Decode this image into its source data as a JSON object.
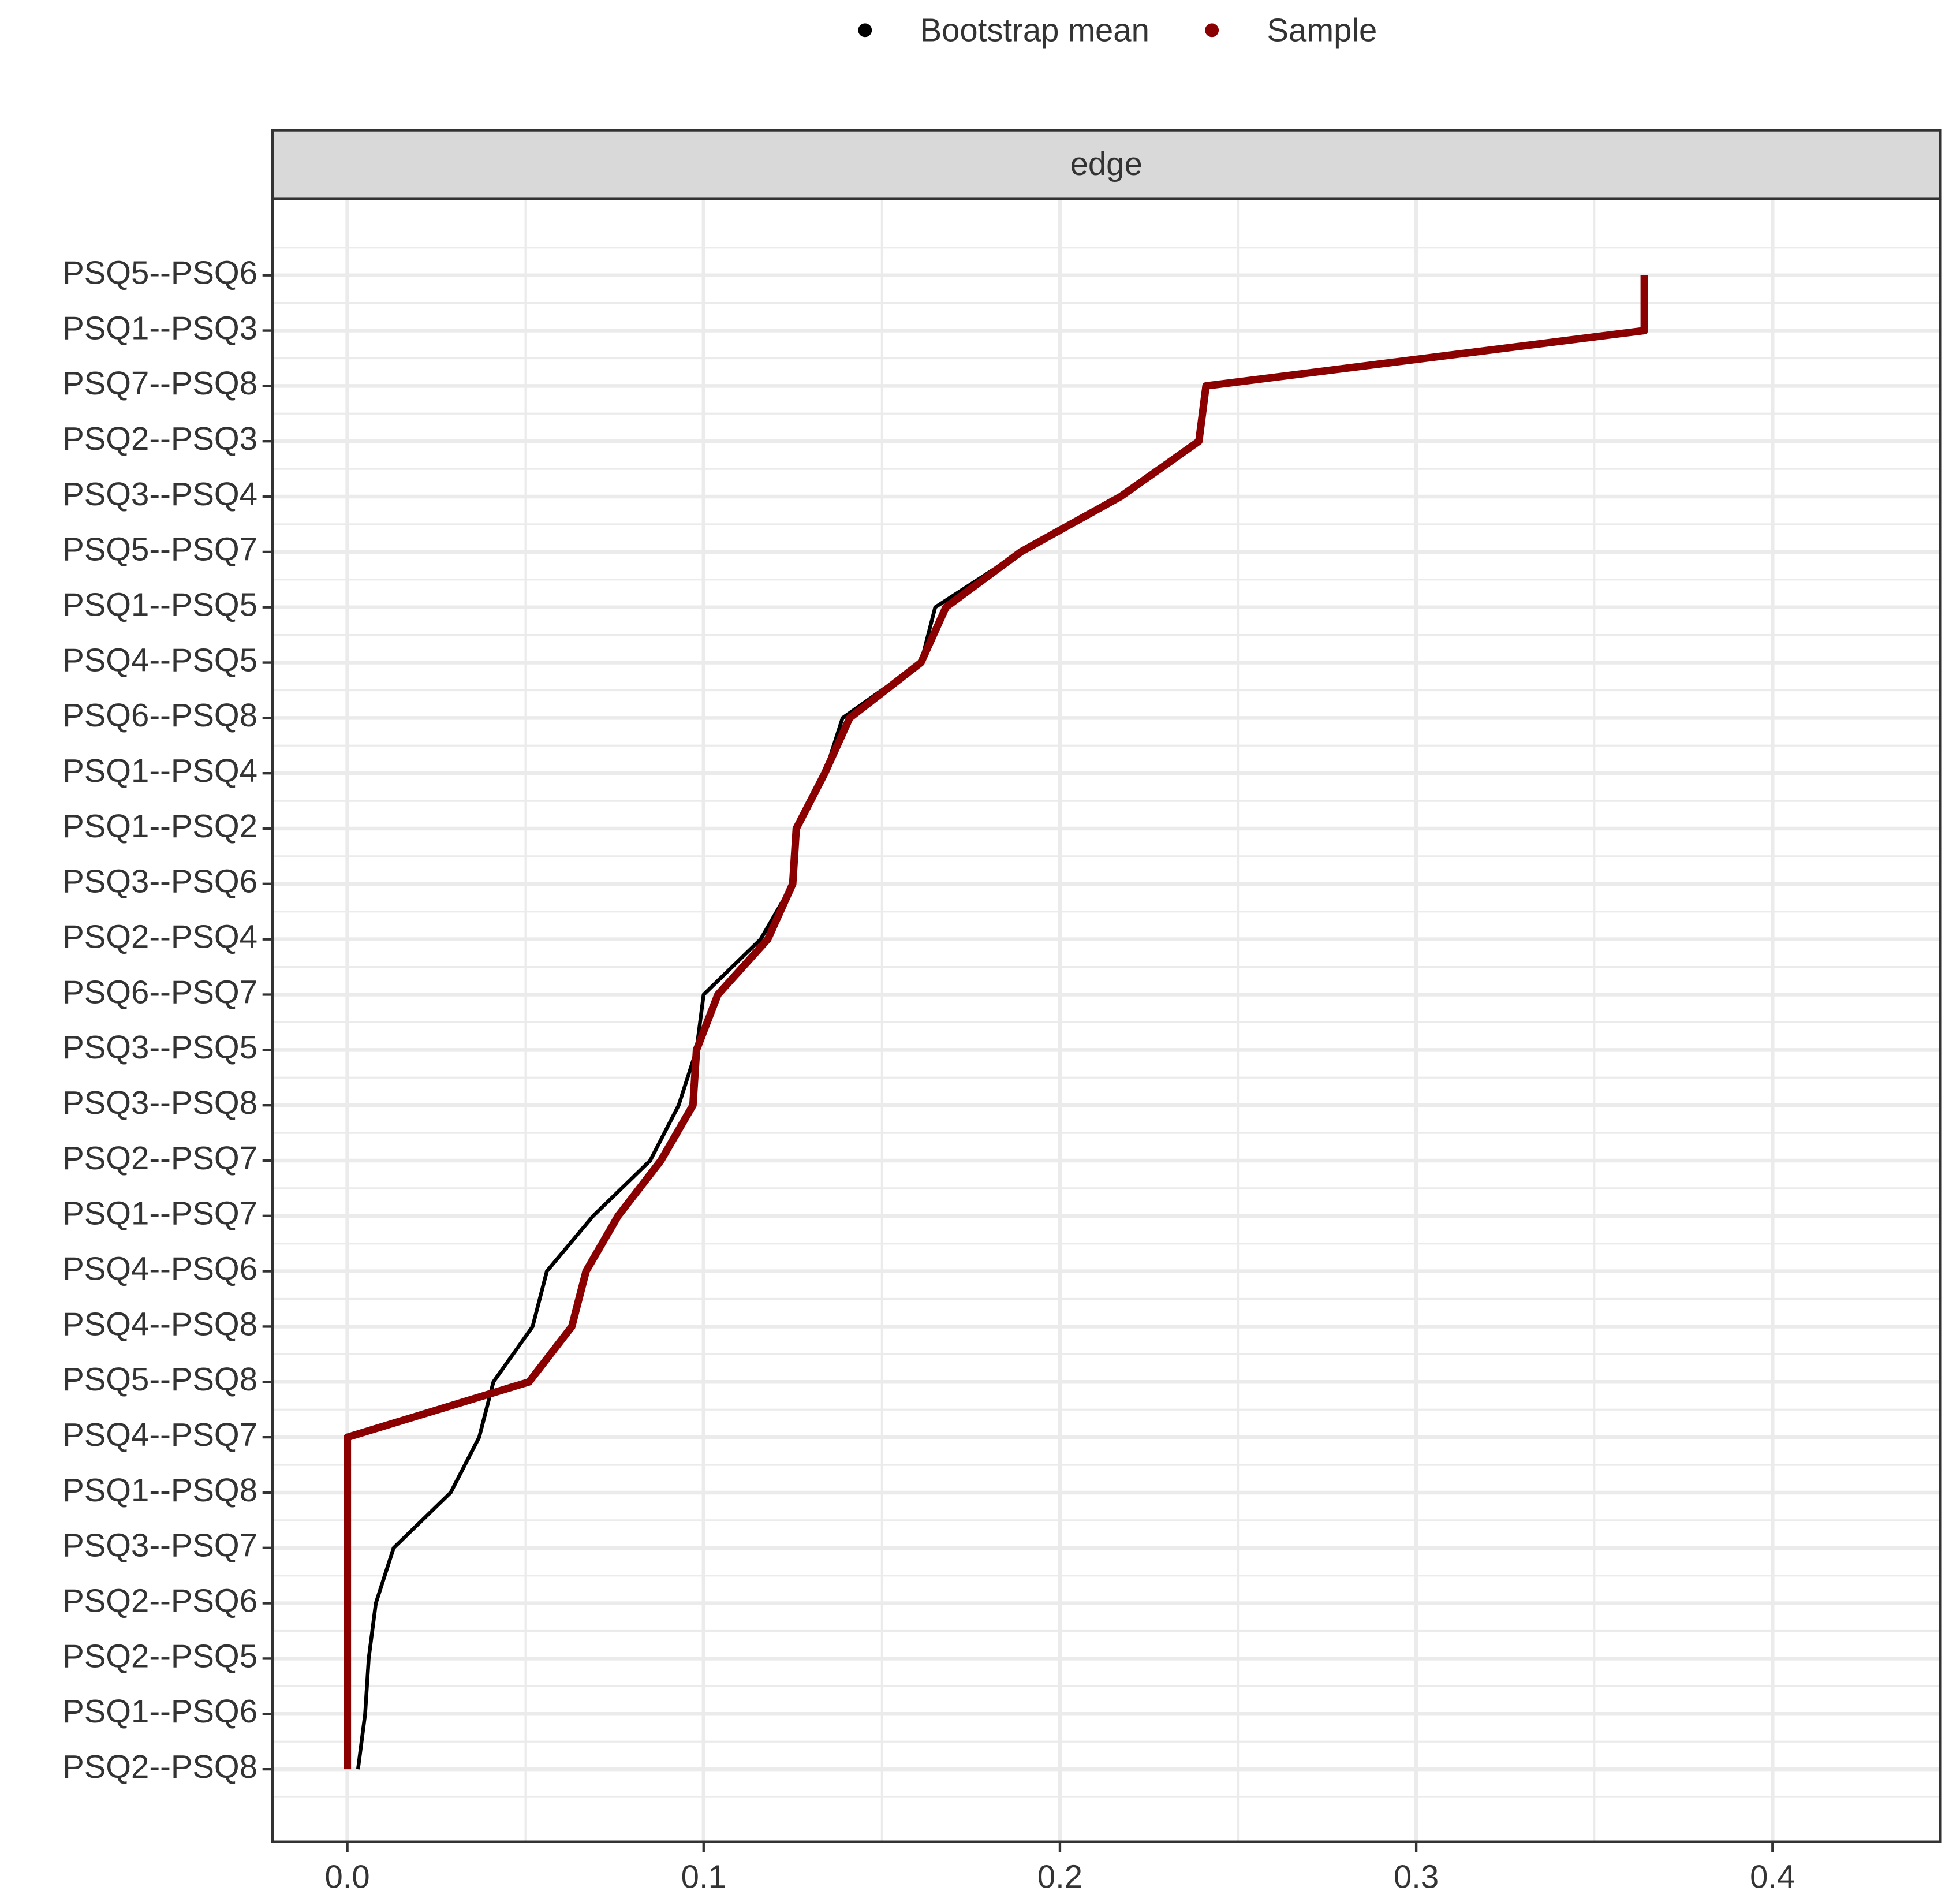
{
  "chart_data": {
    "type": "line",
    "orientation": "horizontal",
    "facet_label": "edge",
    "categories": [
      "PSQ5--PSQ6",
      "PSQ1--PSQ3",
      "PSQ7--PSQ8",
      "PSQ2--PSQ3",
      "PSQ3--PSQ4",
      "PSQ5--PSQ7",
      "PSQ1--PSQ5",
      "PSQ4--PSQ5",
      "PSQ6--PSQ8",
      "PSQ1--PSQ4",
      "PSQ1--PSQ2",
      "PSQ3--PSQ6",
      "PSQ2--PSQ4",
      "PSQ6--PSQ7",
      "PSQ3--PSQ5",
      "PSQ3--PSQ8",
      "PSQ2--PSQ7",
      "PSQ1--PSQ7",
      "PSQ4--PSQ6",
      "PSQ4--PSQ8",
      "PSQ5--PSQ8",
      "PSQ4--PSQ7",
      "PSQ1--PSQ8",
      "PSQ3--PSQ7",
      "PSQ2--PSQ6",
      "PSQ2--PSQ5",
      "PSQ1--PSQ6",
      "PSQ2--PSQ8"
    ],
    "series": [
      {
        "name": "Bootstrap mean",
        "color": "#000000",
        "width": 3,
        "values": [
          0.364,
          0.364,
          0.241,
          0.239,
          0.217,
          0.189,
          0.165,
          0.161,
          0.139,
          0.134,
          0.126,
          0.125,
          0.116,
          0.1,
          0.098,
          0.093,
          0.085,
          0.069,
          0.056,
          0.052,
          0.041,
          0.037,
          0.029,
          0.013,
          0.008,
          0.006,
          0.005,
          0.003
        ]
      },
      {
        "name": "Sample",
        "color": "#8b0000",
        "width": 6,
        "values": [
          0.364,
          0.364,
          0.241,
          0.239,
          0.217,
          0.189,
          0.168,
          0.161,
          0.141,
          0.134,
          0.126,
          0.125,
          0.118,
          0.104,
          0.098,
          0.097,
          0.088,
          0.076,
          0.067,
          0.063,
          0.051,
          0,
          0,
          0,
          0,
          0,
          0,
          0
        ]
      }
    ],
    "xlim": [
      -0.021,
      0.447
    ],
    "xticks": [
      {
        "value": 0,
        "label": "0.0"
      },
      0.1,
      0.2,
      0.3,
      0.4
    ],
    "grid": true,
    "legend": "top"
  }
}
